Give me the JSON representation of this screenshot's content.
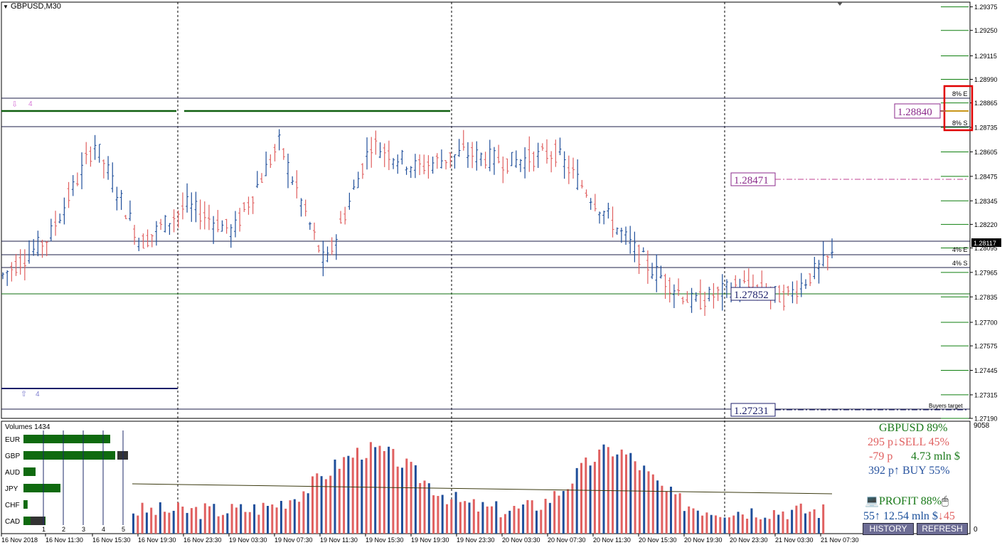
{
  "chart": {
    "title": "GBPUSD,M30",
    "price_ticks": [
      "1.29375",
      "1.29250",
      "1.29115",
      "1.28990",
      "1.28865",
      "1.28735",
      "1.28605",
      "1.28475",
      "1.28345",
      "1.28220",
      "1.28095",
      "1.27965",
      "1.27835",
      "1.27700",
      "1.27575",
      "1.27445",
      "1.27315",
      "1.27190"
    ],
    "time_ticks": [
      "16 Nov 2018",
      "16 Nov 11:30",
      "16 Nov 15:30",
      "16 Nov 19:30",
      "16 Nov 23:30",
      "19 Nov 03:30",
      "19 Nov 07:30",
      "19 Nov 11:30",
      "19 Nov 15:30",
      "19 Nov 19:30",
      "19 Nov 23:30",
      "20 Nov 03:30",
      "20 Nov 07:30",
      "20 Nov 11:30",
      "20 Nov 15:30",
      "20 Nov 19:30",
      "20 Nov 23:30",
      "21 Nov 03:30",
      "21 Nov 07:30"
    ],
    "current_price": "1.28117",
    "levels": {
      "upper_box": "1.28840",
      "mid_dash": "1.28471",
      "lower_box": "1.27852",
      "bottom_dash": "1.27231"
    },
    "zone_labels": {
      "e8": "8% E",
      "s8": "8% S",
      "e4": "4% E",
      "s4": "4% S"
    },
    "signal_down": "4",
    "signal_up": "4",
    "buyers_target": "Buyers target",
    "colors": {
      "bull": "#1f4e9a",
      "bear": "#e06060",
      "grid_green": "#0f5f0f",
      "purple": "#8b2a8b",
      "navy": "#1c1f6a"
    }
  },
  "volume_panel": {
    "title": "Volumes 1434",
    "right_top": "9058",
    "right_bottom": "0",
    "currencies": [
      {
        "code": "EUR",
        "strength": 0.85
      },
      {
        "code": "GBP",
        "strength": 0.9
      },
      {
        "code": "AUD",
        "strength": 0.1
      },
      {
        "code": "JPY",
        "strength": 0.35
      },
      {
        "code": "CHF",
        "strength": 0.02
      },
      {
        "code": "CAD",
        "strength": 0.2
      }
    ],
    "scale_labels": [
      "1",
      "2",
      "3",
      "4",
      "5"
    ],
    "stats": {
      "pair": "GBPUSD 89%",
      "sell": "295 p↓SELL 45%",
      "net_left": "-79 p",
      "net_right": "4.73 mln $",
      "buy": "392 p↑ BUY 55%",
      "profit": "PROFIT 88%",
      "bottom_a": "55↑ 12.54 mln $",
      "bottom_b": "↓45"
    },
    "buttons": {
      "history": "HISTORY",
      "refresh": "REFRESH"
    }
  },
  "chart_data": {
    "type": "bar",
    "title": "GBPUSD,M30",
    "xlabel": "",
    "ylabel": "",
    "ylim": [
      1.2719,
      1.294
    ],
    "categories": [
      "16 Nov 2018",
      "16 Nov 11:30",
      "16 Nov 15:30",
      "16 Nov 19:30",
      "16 Nov 23:30",
      "19 Nov 03:30",
      "19 Nov 07:30",
      "19 Nov 11:30",
      "19 Nov 15:30",
      "19 Nov 19:30",
      "19 Nov 23:30",
      "20 Nov 03:30",
      "20 Nov 07:30",
      "20 Nov 11:30",
      "20 Nov 15:30",
      "20 Nov 19:30",
      "20 Nov 23:30",
      "21 Nov 03:30",
      "21 Nov 07:30"
    ],
    "series": [
      {
        "name": "Close",
        "values": [
          1.2795,
          1.2815,
          1.2865,
          1.2812,
          1.2832,
          1.2818,
          1.2865,
          1.28,
          1.2865,
          1.2852,
          1.286,
          1.2855,
          1.286,
          1.283,
          1.28,
          1.278,
          1.279,
          1.2783,
          1.2805
        ]
      }
    ]
  }
}
